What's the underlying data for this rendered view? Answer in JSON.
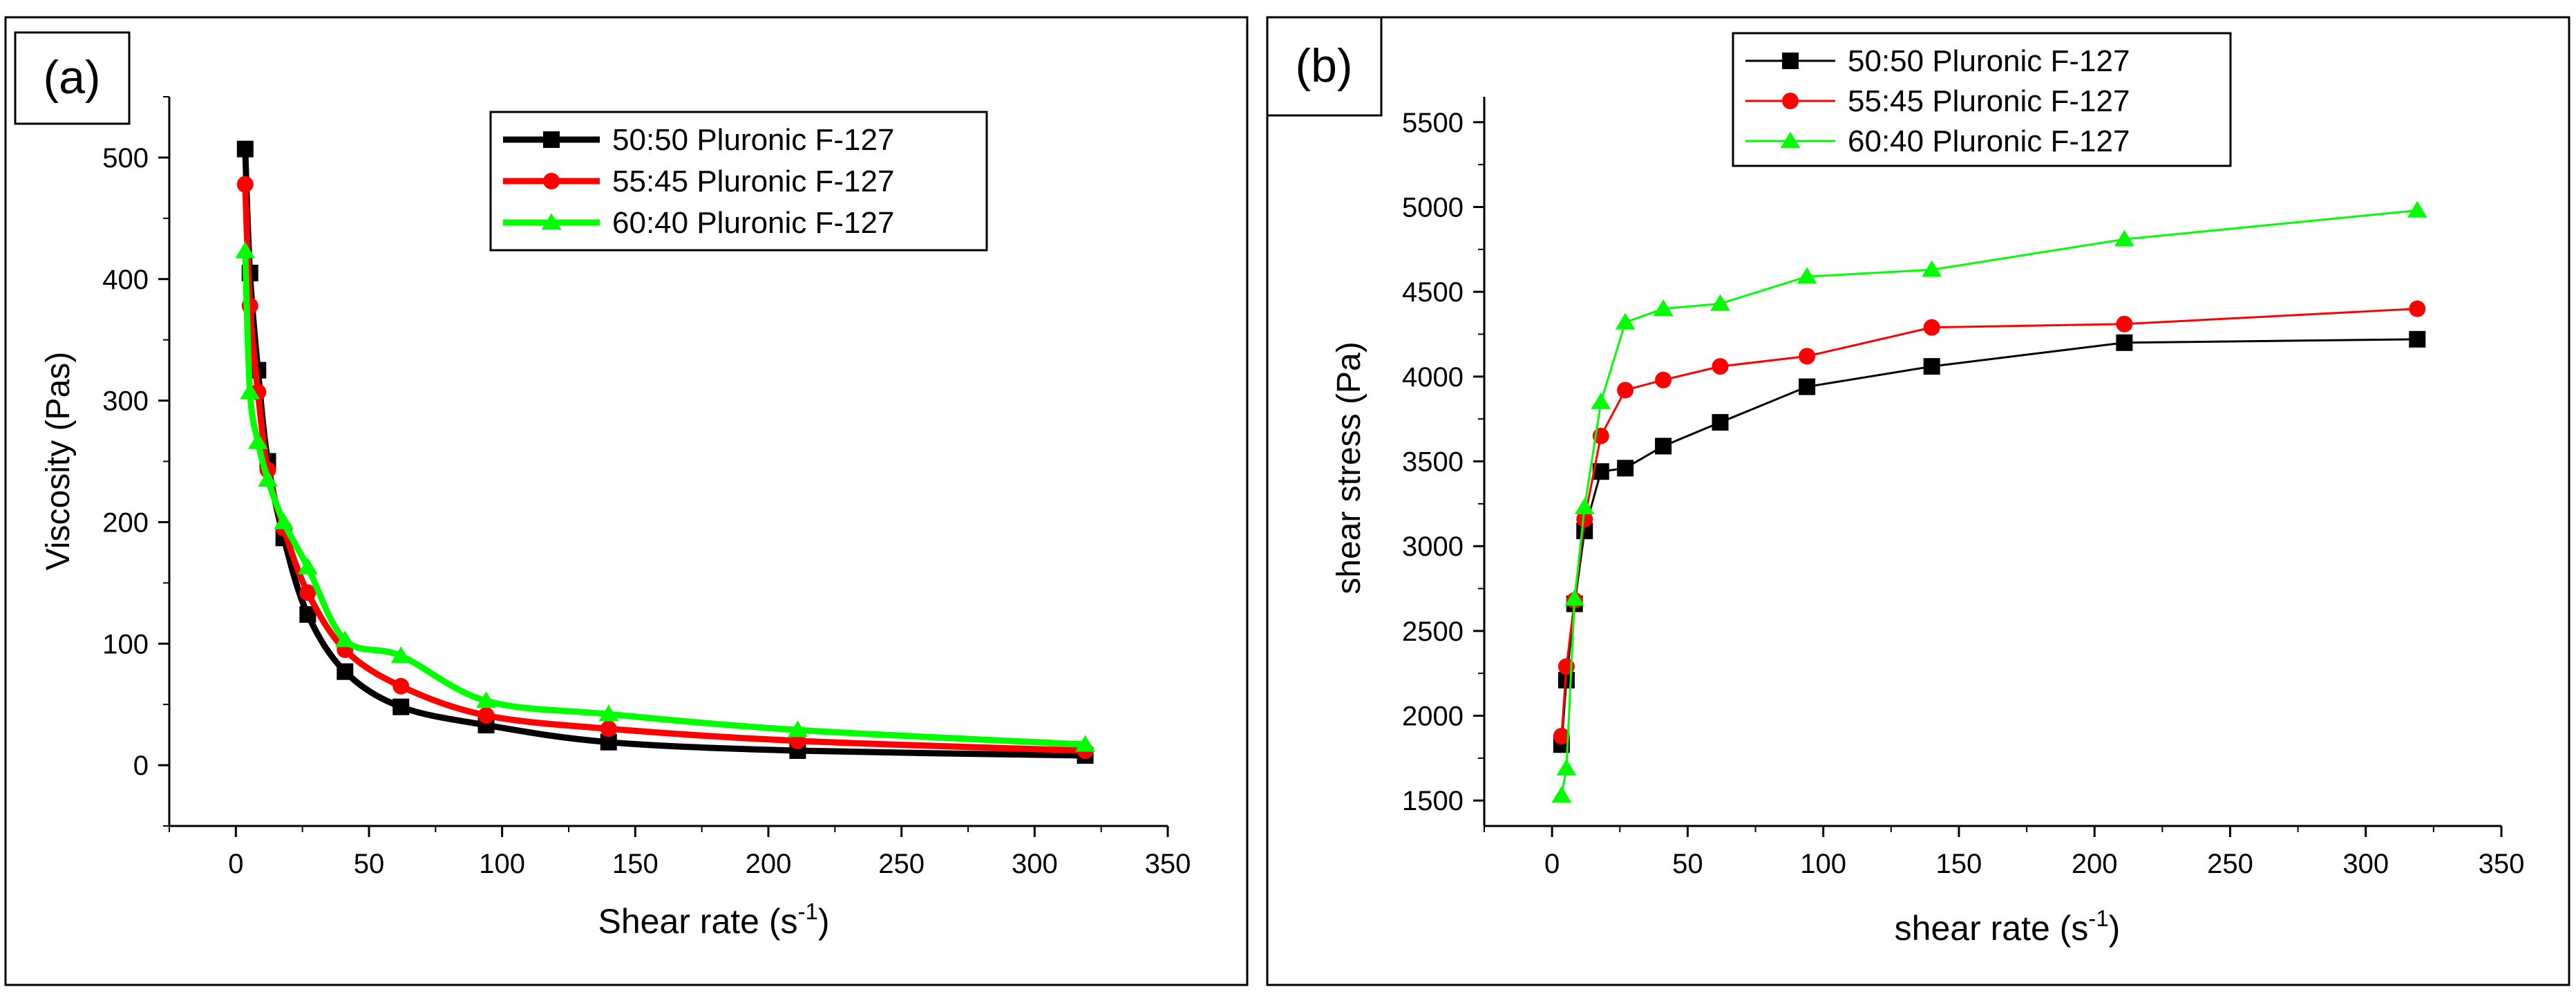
{
  "chart_data": [
    {
      "panel_label": "(a)",
      "type": "line",
      "title": "",
      "xlabel": "Shear rate (s",
      "xlabel_sup": "-1",
      "xlabel_end": ")",
      "ylabel": "Viscosity (Pas)",
      "xlim": [
        -25,
        350
      ],
      "ylim": [
        -50,
        550
      ],
      "xticks": [
        0,
        50,
        100,
        150,
        200,
        250,
        300,
        350
      ],
      "yticks": [
        0,
        100,
        200,
        300,
        400,
        500
      ],
      "smooth": true,
      "legend_position": "top-right",
      "series": [
        {
          "name": "50:50 Pluronic F-127",
          "color": "#000000",
          "marker": "square",
          "x": [
            3.5,
            5.3,
            8.3,
            12,
            18,
            27,
            41,
            62,
            94,
            140,
            211,
            319
          ],
          "y": [
            507,
            405,
            325,
            250,
            187,
            124,
            77,
            48,
            33,
            19,
            12,
            8
          ]
        },
        {
          "name": "55:45 Pluronic F-127",
          "color": "#ff0000",
          "marker": "circle",
          "x": [
            3.5,
            5.3,
            8.3,
            12,
            18,
            27,
            41,
            62,
            94,
            140,
            211,
            319
          ],
          "y": [
            478,
            378,
            307,
            243,
            195,
            142,
            95,
            65,
            41,
            30,
            20,
            12
          ]
        },
        {
          "name": "60:40 Pluronic F-127",
          "color": "#00ff00",
          "marker": "triangle",
          "x": [
            3.5,
            5.3,
            8.3,
            12,
            18,
            27,
            41,
            62,
            94,
            140,
            211,
            319
          ],
          "y": [
            423,
            307,
            266,
            235,
            200,
            163,
            103,
            90,
            53,
            42,
            29,
            17
          ]
        }
      ]
    },
    {
      "panel_label": "(b)",
      "type": "line",
      "title": "",
      "xlabel": "shear rate (s",
      "xlabel_sup": "-1",
      "xlabel_end": ")",
      "ylabel": "shear stress (Pa)",
      "xlim": [
        -25,
        350
      ],
      "ylim": [
        1350,
        5650
      ],
      "xticks": [
        0,
        50,
        100,
        150,
        200,
        250,
        300,
        350
      ],
      "yticks": [
        1500,
        2000,
        2500,
        3000,
        3500,
        4000,
        4500,
        5000,
        5500
      ],
      "smooth": false,
      "legend_position": "top-center",
      "series": [
        {
          "name": "50:50 Pluronic F-127",
          "color": "#000000",
          "marker": "square",
          "x": [
            3.5,
            5.3,
            8.3,
            12,
            18,
            27,
            41,
            62,
            94,
            140,
            211,
            319
          ],
          "y": [
            1830,
            2210,
            2660,
            3090,
            3440,
            3460,
            3590,
            3730,
            3940,
            4060,
            4200,
            4220
          ]
        },
        {
          "name": "55:45 Pluronic F-127",
          "color": "#ff0000",
          "marker": "circle",
          "x": [
            3.5,
            5.3,
            8.3,
            12,
            18,
            27,
            41,
            62,
            94,
            140,
            211,
            319
          ],
          "y": [
            1880,
            2290,
            2680,
            3160,
            3650,
            3920,
            3980,
            4060,
            4120,
            4290,
            4310,
            4400
          ]
        },
        {
          "name": "60:40 Pluronic F-127",
          "color": "#00ff00",
          "marker": "triangle",
          "x": [
            3.5,
            5.3,
            8.3,
            12,
            18,
            27,
            41,
            62,
            94,
            140,
            211,
            319
          ],
          "y": [
            1530,
            1690,
            2690,
            3230,
            3850,
            4320,
            4400,
            4430,
            4590,
            4630,
            4810,
            4980
          ]
        }
      ]
    }
  ]
}
